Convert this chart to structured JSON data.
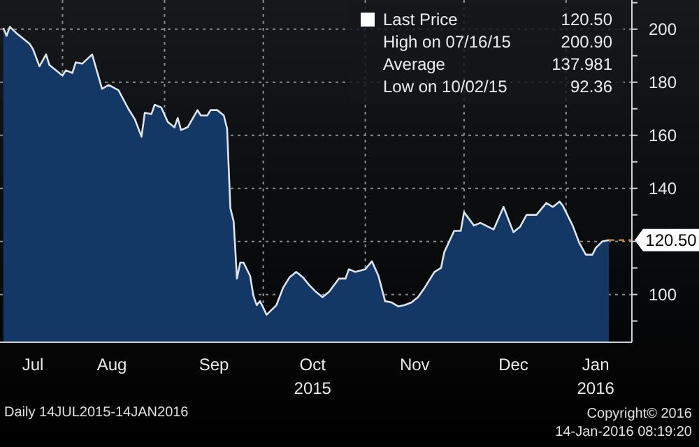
{
  "chart_data": {
    "type": "area",
    "x": [
      "2015-07-14",
      "2015-07-15",
      "2015-07-16",
      "2015-07-18",
      "2015-07-22",
      "2015-07-23",
      "2015-07-25",
      "2015-07-27",
      "2015-07-28",
      "2015-08-01",
      "2015-08-02",
      "2015-08-04",
      "2015-08-05",
      "2015-08-07",
      "2015-08-10",
      "2015-08-13",
      "2015-08-15",
      "2015-08-18",
      "2015-08-21",
      "2015-08-23",
      "2015-08-25",
      "2015-08-26",
      "2015-08-28",
      "2015-08-29",
      "2015-08-31",
      "2015-09-02",
      "2015-09-04",
      "2015-09-05",
      "2015-09-06",
      "2015-09-08",
      "2015-09-11",
      "2015-09-12",
      "2015-09-14",
      "2015-09-15",
      "2015-09-17",
      "2015-09-19",
      "2015-09-20",
      "2015-09-21",
      "2015-09-22",
      "2015-09-23",
      "2015-09-24",
      "2015-09-25",
      "2015-09-27",
      "2015-09-28",
      "2015-09-29",
      "2015-09-30",
      "2015-10-01",
      "2015-10-02",
      "2015-10-05",
      "2015-10-07",
      "2015-10-09",
      "2015-10-11",
      "2015-10-13",
      "2015-10-15",
      "2015-10-17",
      "2015-10-19",
      "2015-10-21",
      "2015-10-24",
      "2015-10-26",
      "2015-10-27",
      "2015-10-29",
      "2015-11-01",
      "2015-11-03",
      "2015-11-05",
      "2015-11-07",
      "2015-11-09",
      "2015-11-11",
      "2015-11-13",
      "2015-11-15",
      "2015-11-17",
      "2015-11-19",
      "2015-11-22",
      "2015-11-24",
      "2015-11-25",
      "2015-11-28",
      "2015-11-30",
      "2015-12-01",
      "2015-12-04",
      "2015-12-06",
      "2015-12-10",
      "2015-12-13",
      "2015-12-16",
      "2015-12-18",
      "2015-12-20",
      "2015-12-23",
      "2015-12-26",
      "2015-12-28",
      "2015-12-30",
      "2015-12-31",
      "2016-01-03",
      "2016-01-05",
      "2016-01-07",
      "2016-01-09",
      "2016-01-10",
      "2016-01-12",
      "2016-01-14"
    ],
    "series": [
      {
        "name": "Last Price",
        "color": "#133866",
        "values": [
          200.5,
          197.5,
          200.9,
          198.5,
          194.5,
          192.5,
          186,
          190.5,
          186.5,
          182.5,
          184.5,
          183.5,
          187.5,
          187,
          190.5,
          177.5,
          179,
          177,
          170,
          166,
          159.5,
          168.5,
          168,
          171.5,
          170.5,
          165,
          163,
          166.5,
          162,
          163,
          169.5,
          167.5,
          167.5,
          169.5,
          169.5,
          167.5,
          162.5,
          132.5,
          127.5,
          106,
          112,
          112,
          107,
          99.5,
          96,
          97.5,
          95,
          92.36,
          96,
          102.5,
          106.5,
          108.5,
          106.5,
          103.5,
          101,
          99,
          101,
          106,
          106,
          109.5,
          108.5,
          109.5,
          112.5,
          107,
          97.5,
          97,
          95.5,
          96,
          97,
          99,
          102.5,
          108.5,
          110,
          116,
          124,
          124,
          131,
          126,
          127,
          124.5,
          133,
          123.5,
          125.5,
          130,
          130,
          134.5,
          133,
          135,
          133.5,
          126,
          119.5,
          115,
          115,
          117.5,
          120,
          120.5
        ]
      }
    ],
    "xlim": [
      "2015-07-13",
      "2016-01-21"
    ],
    "xticks": [
      {
        "value": "2015-07-23",
        "label": "Jul"
      },
      {
        "value": "2015-08-01",
        "label": null
      },
      {
        "value": "2015-08-16",
        "label": "Aug"
      },
      {
        "value": "2015-09-01",
        "label": null
      },
      {
        "value": "2015-09-16",
        "label": "Sep"
      },
      {
        "value": "2015-10-01",
        "label": null
      },
      {
        "value": "2015-10-16",
        "label": "Oct\n2015"
      },
      {
        "value": "2015-11-01",
        "label": null
      },
      {
        "value": "2015-11-16",
        "label": "Nov"
      },
      {
        "value": "2015-12-01",
        "label": null
      },
      {
        "value": "2015-12-16",
        "label": "Dec"
      },
      {
        "value": "2016-01-01",
        "label": null
      },
      {
        "value": "2016-01-10",
        "label": "Jan\n2016"
      }
    ],
    "ylim": [
      82,
      211
    ],
    "yticks": [
      {
        "value": 90,
        "label": null
      },
      100,
      {
        "value": 110,
        "label": null
      },
      {
        "value": 120,
        "label": null
      },
      {
        "value": 130,
        "label": null
      },
      140,
      {
        "value": 150,
        "label": null
      },
      160,
      {
        "value": 170,
        "label": null
      },
      180,
      {
        "value": 190,
        "label": null
      },
      200,
      {
        "value": 210,
        "label": null
      }
    ],
    "grid": true,
    "legend": "top right",
    "ref_lines": [
      {
        "axis": "y",
        "value": 120.5,
        "label": "120.50",
        "color": "#f0a030",
        "line_style": "dashed"
      }
    ],
    "annotations": [
      "High on 07/16/15 200.90",
      "Average 137.981",
      "Low on 10/02/15 92.36",
      "Daily 14JUL2015-14JAN2016",
      "Copyright© 2016",
      "14-Jan-2016 08:19:20"
    ]
  }
}
